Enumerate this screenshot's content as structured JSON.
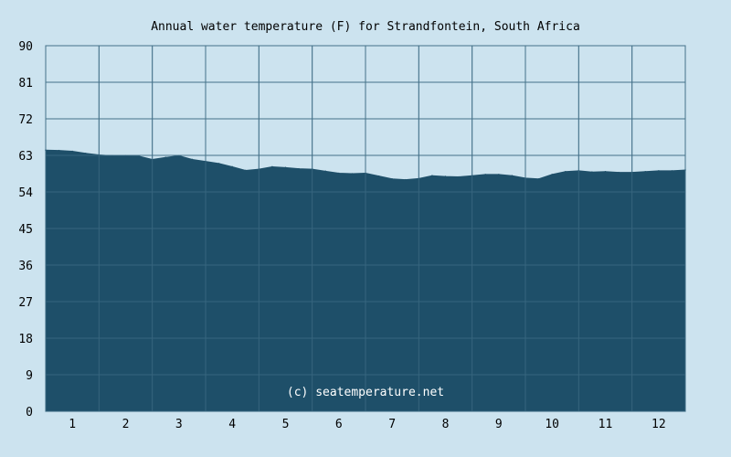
{
  "chart_data": {
    "type": "area",
    "title": "Annual water temperature (F) for Strandfontein, South Africa",
    "xlabel": "",
    "ylabel": "",
    "ylim": [
      0,
      90
    ],
    "xlim": [
      0.5,
      12.5
    ],
    "y_ticks": [
      "0",
      "9",
      "18",
      "27",
      "36",
      "45",
      "54",
      "63",
      "72",
      "81",
      "90"
    ],
    "x_ticks": [
      "1",
      "2",
      "3",
      "4",
      "5",
      "6",
      "7",
      "8",
      "9",
      "10",
      "11",
      "12"
    ],
    "grid": true,
    "series": [
      {
        "x": [
          0.5,
          0.75,
          1.0,
          1.25,
          1.5,
          1.75,
          2.0,
          2.25,
          2.5,
          2.75,
          3.0,
          3.25,
          3.5,
          3.75,
          4.0,
          4.25,
          4.5,
          4.75,
          5.0,
          5.25,
          5.5,
          5.75,
          6.0,
          6.25,
          6.5,
          6.75,
          7.0,
          7.25,
          7.5,
          7.75,
          8.0,
          8.25,
          8.5,
          8.75,
          9.0,
          9.25,
          9.5,
          9.75,
          10.0,
          10.25,
          10.5,
          10.75,
          11.0,
          11.25,
          11.5,
          11.75,
          12.0,
          12.25,
          12.5
        ],
        "values": [
          64.3,
          64.2,
          64.0,
          63.5,
          63.1,
          62.9,
          62.9,
          62.8,
          62.0,
          62.5,
          62.9,
          62.0,
          61.5,
          61.0,
          60.2,
          59.3,
          59.6,
          60.2,
          60.0,
          59.7,
          59.6,
          59.1,
          58.6,
          58.5,
          58.6,
          57.9,
          57.2,
          57.0,
          57.3,
          58.0,
          57.8,
          57.7,
          58.0,
          58.3,
          58.3,
          58.0,
          57.4,
          57.2,
          58.3,
          59.0,
          59.2,
          58.9,
          59.0,
          58.8,
          58.8,
          59.0,
          59.2,
          59.2,
          59.4
        ]
      }
    ],
    "annotations": [
      "(c) seatemperature.net"
    ],
    "colors": {
      "background": "#cce3ef",
      "area": "#1e4f69",
      "grid_light": "#4a7790",
      "grid_dark": "#3d6a82",
      "text": "#000000",
      "credit": "#ffffff"
    }
  }
}
